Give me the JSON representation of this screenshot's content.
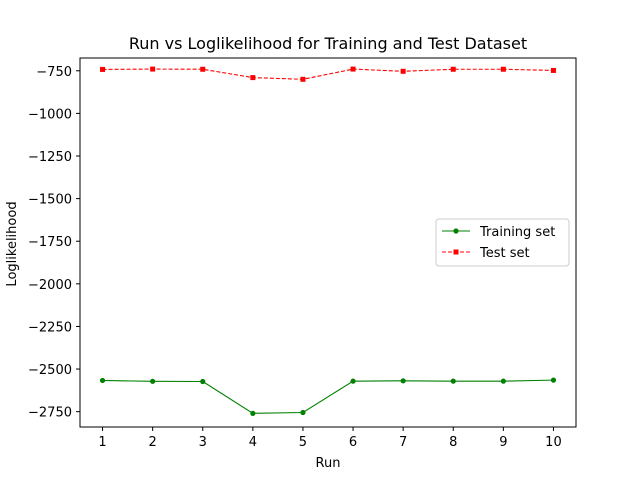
{
  "chart_data": {
    "type": "line",
    "title": "Run vs Loglikelihood for Training and Test Dataset",
    "xlabel": "Run",
    "ylabel": "Loglikelihood",
    "x": [
      1,
      2,
      3,
      4,
      5,
      6,
      7,
      8,
      9,
      10
    ],
    "xticks": [
      "1",
      "2",
      "3",
      "4",
      "5",
      "6",
      "7",
      "8",
      "9",
      "10"
    ],
    "yticks": [
      -750,
      -1000,
      -1250,
      -1500,
      -1750,
      -2000,
      -2250,
      -2500,
      -2750
    ],
    "ytick_labels": [
      "−750",
      "−1000",
      "−1250",
      "−1500",
      "−1750",
      "−2000",
      "−2250",
      "−2500",
      "−2750"
    ],
    "xlim": [
      0.55,
      10.45
    ],
    "ylim": [
      -2840,
      -675
    ],
    "grid": false,
    "legend_position": "center-right",
    "series": [
      {
        "name": "Training set",
        "color": "#008000",
        "style": "solid",
        "marker": "circle",
        "values": [
          -2567,
          -2572,
          -2573,
          -2760,
          -2755,
          -2571,
          -2569,
          -2571,
          -2571,
          -2565
        ]
      },
      {
        "name": "Test set",
        "color": "#ff0000",
        "style": "dashed",
        "marker": "square",
        "values": [
          -742,
          -740,
          -741,
          -790,
          -800,
          -740,
          -753,
          -741,
          -741,
          -748
        ]
      }
    ]
  }
}
